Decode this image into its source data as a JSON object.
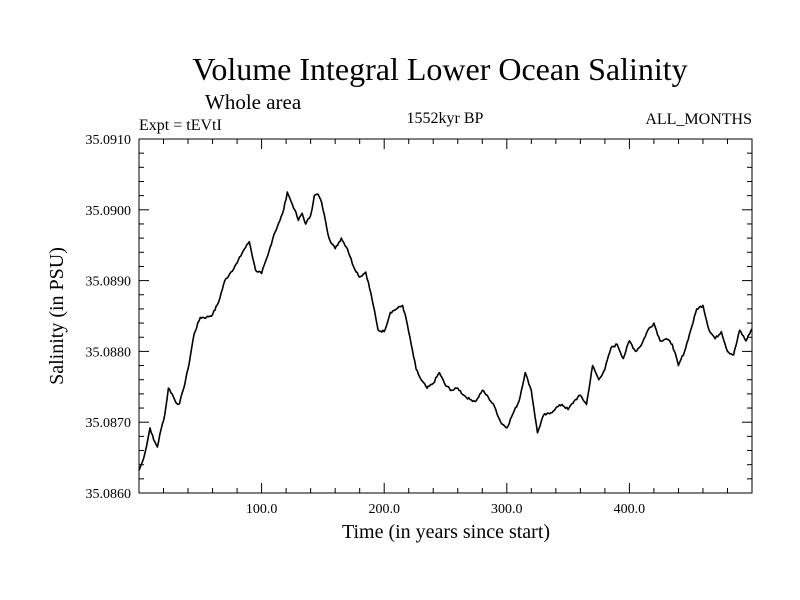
{
  "chart_data": {
    "type": "line",
    "title": "Volume Integral Lower Ocean Salinity",
    "subtitle": "Whole area",
    "experiment": "Expt = tEVtI",
    "period": "1552kyr BP",
    "months": "ALL_MONTHS",
    "xlabel": "Time (in years since start)",
    "ylabel": "Salinity (in PSU)",
    "xlim": [
      0,
      500
    ],
    "ylim": [
      35.086,
      35.091
    ],
    "xticks": [
      {
        "value": 100,
        "label": "100.0"
      },
      {
        "value": 200,
        "label": "200.0"
      },
      {
        "value": 300,
        "label": "300.0"
      },
      {
        "value": 400,
        "label": "400.0"
      }
    ],
    "yticks": [
      {
        "value": 35.086,
        "label": "35.0860"
      },
      {
        "value": 35.087,
        "label": "35.0870"
      },
      {
        "value": 35.088,
        "label": "35.0880"
      },
      {
        "value": 35.089,
        "label": "35.0890"
      },
      {
        "value": 35.09,
        "label": "35.0900"
      },
      {
        "value": 35.091,
        "label": "35.0910"
      }
    ],
    "series": [
      {
        "name": "Salinity",
        "x": [
          0,
          3,
          6,
          9,
          12,
          15,
          18,
          21,
          24,
          27,
          30,
          33,
          36,
          40,
          45,
          50,
          55,
          60,
          65,
          70,
          75,
          80,
          85,
          90,
          95,
          100,
          105,
          110,
          115,
          118,
          121,
          124,
          127,
          130,
          133,
          136,
          140,
          143,
          146,
          149,
          152,
          155,
          160,
          165,
          170,
          175,
          180,
          185,
          190,
          195,
          200,
          205,
          210,
          215,
          218,
          222,
          226,
          230,
          235,
          240,
          245,
          250,
          255,
          260,
          265,
          270,
          275,
          280,
          285,
          290,
          295,
          300,
          305,
          310,
          315,
          320,
          325,
          330,
          335,
          340,
          345,
          350,
          355,
          360,
          365,
          370,
          375,
          380,
          385,
          390,
          395,
          400,
          405,
          410,
          415,
          420,
          425,
          430,
          435,
          440,
          445,
          450,
          455,
          460,
          465,
          470,
          475,
          480,
          485,
          490,
          495,
          500
        ],
        "y": [
          35.08632,
          35.08645,
          35.08665,
          35.08692,
          35.08675,
          35.08665,
          35.0869,
          35.0871,
          35.08748,
          35.0874,
          35.08728,
          35.08726,
          35.08745,
          35.08775,
          35.08825,
          35.08848,
          35.08848,
          35.08852,
          35.0887,
          35.089,
          35.08912,
          35.08925,
          35.08942,
          35.08955,
          35.08915,
          35.0891,
          35.08935,
          35.08965,
          35.08985,
          35.09,
          35.09025,
          35.09012,
          35.09,
          35.08985,
          35.08995,
          35.0898,
          35.08992,
          35.0902,
          35.09022,
          35.0901,
          35.08985,
          35.0896,
          35.08945,
          35.0896,
          35.08945,
          35.0892,
          35.08905,
          35.08912,
          35.08875,
          35.0883,
          35.08828,
          35.08855,
          35.0886,
          35.08865,
          35.08845,
          35.0881,
          35.08775,
          35.0876,
          35.08748,
          35.08755,
          35.0877,
          35.08752,
          35.08745,
          35.08748,
          35.08738,
          35.08732,
          35.0873,
          35.08745,
          35.08735,
          35.08722,
          35.087,
          35.08692,
          35.08712,
          35.0873,
          35.0877,
          35.08745,
          35.08685,
          35.0871,
          35.08712,
          35.0872,
          35.08725,
          35.08718,
          35.0873,
          35.08738,
          35.08725,
          35.0878,
          35.0876,
          35.08775,
          35.08805,
          35.0881,
          35.0879,
          35.08815,
          35.088,
          35.0881,
          35.0883,
          35.0884,
          35.08815,
          35.08818,
          35.0881,
          35.0878,
          35.088,
          35.0883,
          35.0886,
          35.08865,
          35.0883,
          35.08818,
          35.08828,
          35.088,
          35.08795,
          35.0883,
          35.08815,
          35.08832
        ]
      }
    ],
    "line_color": "#000000",
    "grid": false
  }
}
